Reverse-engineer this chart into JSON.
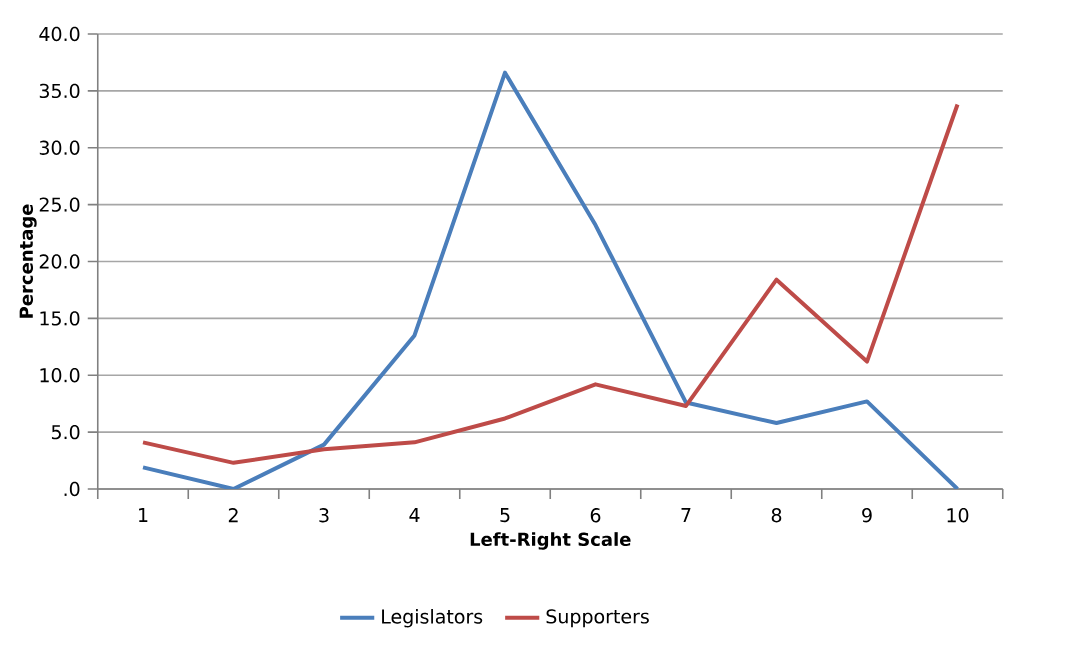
{
  "chart_data": {
    "type": "line",
    "xlabel": "Left-Right Scale",
    "ylabel": "Percentage",
    "categories": [
      "1",
      "2",
      "3",
      "4",
      "5",
      "6",
      "7",
      "8",
      "9",
      "10"
    ],
    "series": [
      {
        "name": "Legislators",
        "color": "#4a7ebb",
        "values": [
          1.9,
          0,
          3.9,
          13.5,
          36.6,
          23.2,
          7.6,
          5.8,
          7.7,
          0
        ]
      },
      {
        "name": "Supporters",
        "color": "#be4b48",
        "values": [
          4.1,
          2.3,
          3.5,
          4.1,
          6.2,
          9.2,
          7.3,
          18.4,
          11.2,
          33.8
        ]
      }
    ],
    "ylim": [
      0,
      40
    ],
    "yticks": [
      {
        "value": 0,
        "label": ".0"
      },
      {
        "value": 5,
        "label": "5.0"
      },
      {
        "value": 10,
        "label": "10.0"
      },
      {
        "value": 15,
        "label": "15.0"
      },
      {
        "value": 20,
        "label": "20.0"
      },
      {
        "value": 25,
        "label": "25.0"
      },
      {
        "value": 30,
        "label": "30.0"
      },
      {
        "value": 35,
        "label": "35.0"
      },
      {
        "value": 40,
        "label": "40.0"
      }
    ],
    "grid": "y",
    "legend": "bottom",
    "marker": "none",
    "line_style": "solid"
  }
}
